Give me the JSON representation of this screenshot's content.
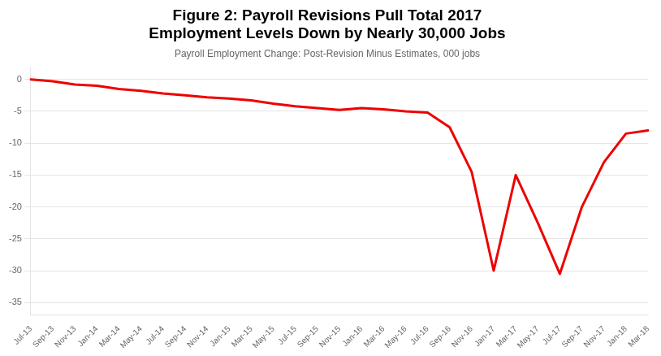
{
  "chart_data": {
    "type": "line",
    "title": "Figure 2: Payroll Revisions Pull Total 2017\nEmployment Levels Down by Nearly 30,000 Jobs",
    "subtitle": "Payroll Employment Change: Post-Revision Minus Estimates, 000 jobs",
    "categories": [
      "Jul-13",
      "Sep-13",
      "Nov-13",
      "Jan-14",
      "Mar-14",
      "May-14",
      "Jul-14",
      "Sep-14",
      "Nov-14",
      "Jan-15",
      "Mar-15",
      "May-15",
      "Jul-15",
      "Sep-15",
      "Nov-15",
      "Jan-16",
      "Mar-16",
      "May-16",
      "Jul-16",
      "Sep-16",
      "Nov-16",
      "Jan-17",
      "Mar-17",
      "May-17",
      "Jul-17",
      "Sep-17",
      "Nov-17",
      "Jan-18",
      "Mar-18"
    ],
    "values": [
      0.0,
      -0.3,
      -0.8,
      -1.0,
      -1.5,
      -1.8,
      -2.2,
      -2.5,
      -2.8,
      -3.0,
      -3.3,
      -3.8,
      -4.2,
      -4.5,
      -4.8,
      -4.5,
      -4.7,
      -5.0,
      -5.2,
      -7.5,
      -14.5,
      -30.0,
      -15.0,
      -22.5,
      -30.5,
      -20.0,
      -13.0,
      -8.5,
      -8.0
    ],
    "color": "#EE0000",
    "ylim": [
      -37,
      2
    ],
    "yticks": [
      0,
      -5,
      -10,
      -15,
      -20,
      -25,
      -30,
      -35
    ],
    "grid": true
  }
}
